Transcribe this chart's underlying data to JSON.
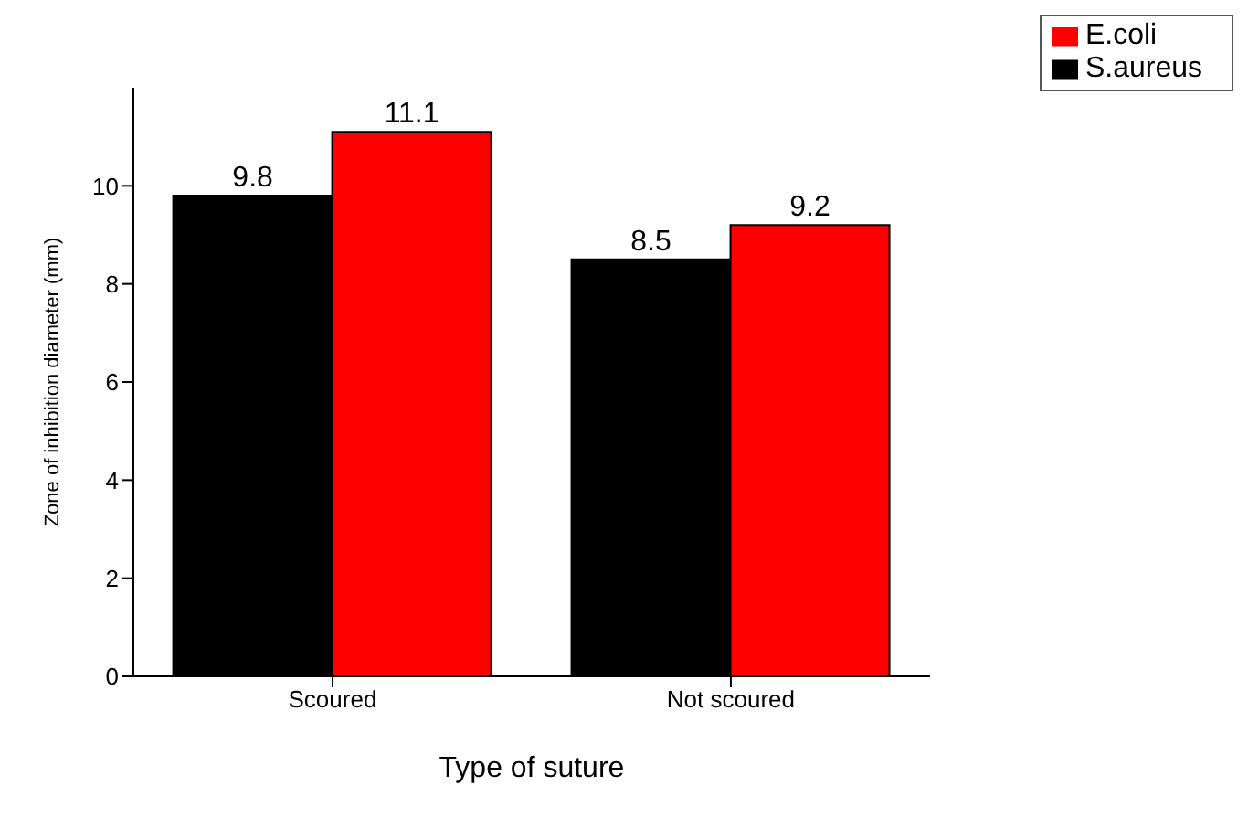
{
  "chart_data": {
    "type": "bar",
    "xlabel": "Type of suture",
    "ylabel": "Zone of inhibition diameter (mm)",
    "categories": [
      "Scoured",
      "Not scoured"
    ],
    "series": [
      {
        "name": "S.aureus",
        "color": "#000000",
        "values": [
          9.8,
          8.5
        ]
      },
      {
        "name": "E.coli",
        "color": "#ff0000",
        "values": [
          11.1,
          9.2
        ]
      }
    ],
    "ylim": [
      0,
      12
    ],
    "yticks": [
      0,
      2,
      4,
      6,
      8,
      10
    ],
    "data_labels": true,
    "grid": false,
    "legend": "top right"
  }
}
